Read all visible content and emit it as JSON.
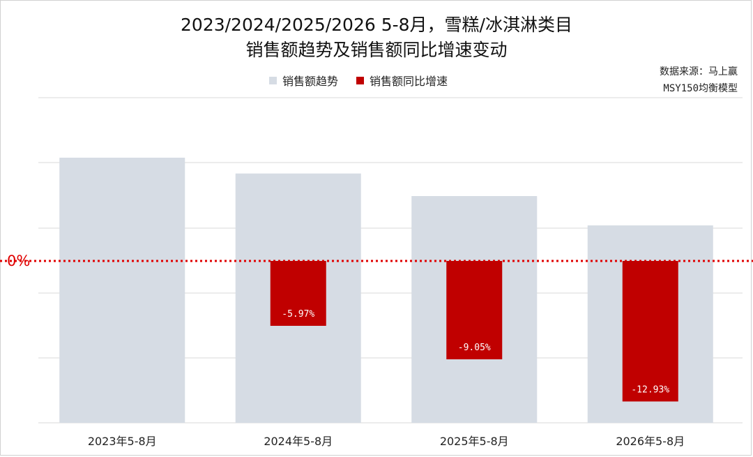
{
  "title_line1": "2023/2024/2025/2026 5-8月，雪糕/冰淇淋类目",
  "title_line2": "销售额趋势及销售额同比增速变动",
  "source_line1": "数据来源：马上赢",
  "source_line2": "MSY150均衡模型",
  "zero_label": "0%",
  "colors": {
    "trend": "#d6dce4",
    "growth": "#c00000",
    "zero_line": "#e00000",
    "grid": "#d9d9d9"
  },
  "chart_data": {
    "type": "bar",
    "categories": [
      "2023年5-8月",
      "2024年5-8月",
      "2025年5-8月",
      "2026年5-8月"
    ],
    "series": [
      {
        "name": "销售额趋势",
        "values": [
          100,
          94.03,
          85.52,
          74.46
        ],
        "note_scale": "relative index, 2023=100"
      },
      {
        "name": "销售额同比增速",
        "values": [
          null,
          -5.97,
          -9.05,
          -12.93
        ],
        "labels": [
          "",
          "-5.97%",
          "-9.05%",
          "-12.93%"
        ]
      }
    ],
    "legend": "top-center",
    "grid": true
  }
}
